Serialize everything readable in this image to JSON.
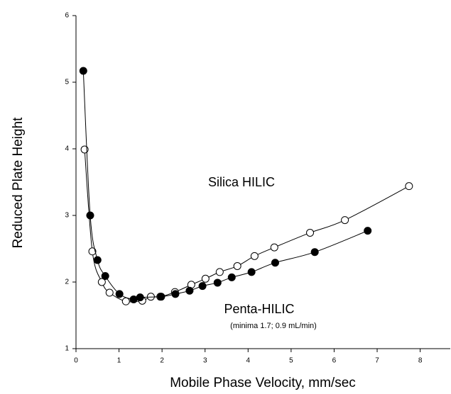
{
  "chart_data": {
    "type": "scatter",
    "x_label": "Mobile Phase Velocity, mm/sec",
    "y_label": "Reduced Plate Height",
    "note": "(minima 1.7; 0.9 mL/min)",
    "xlim": [
      0,
      8.7
    ],
    "xticks": [
      0,
      1,
      2,
      3,
      4,
      5,
      6,
      7,
      8
    ],
    "ylim": [
      1,
      6
    ],
    "yticks": [
      1,
      2,
      3,
      4,
      5,
      6
    ],
    "series": [
      {
        "name": "Silica HILIC",
        "color": "#000000",
        "filled": false,
        "x": [
          0.2,
          0.38,
          0.6,
          0.78,
          1.16,
          1.54,
          1.74,
          1.96,
          2.3,
          2.68,
          3.01,
          3.34,
          3.75,
          4.15,
          4.61,
          5.44,
          6.25,
          7.74
        ],
        "values": [
          3.99,
          2.46,
          2.0,
          1.84,
          1.71,
          1.72,
          1.78,
          1.78,
          1.85,
          1.96,
          2.05,
          2.15,
          2.24,
          2.39,
          2.52,
          2.74,
          2.93,
          3.44
        ]
      },
      {
        "name": "Penta-HILIC",
        "color": "#000000",
        "filled": true,
        "x": [
          0.17,
          0.33,
          0.5,
          0.68,
          1.01,
          1.34,
          1.49,
          1.98,
          2.31,
          2.64,
          2.94,
          3.29,
          3.62,
          4.08,
          4.63,
          5.55,
          6.78
        ],
        "values": [
          5.17,
          3.0,
          2.33,
          2.09,
          1.82,
          1.74,
          1.77,
          1.78,
          1.82,
          1.87,
          1.94,
          1.99,
          2.07,
          2.15,
          2.29,
          2.45,
          2.77
        ]
      }
    ]
  }
}
